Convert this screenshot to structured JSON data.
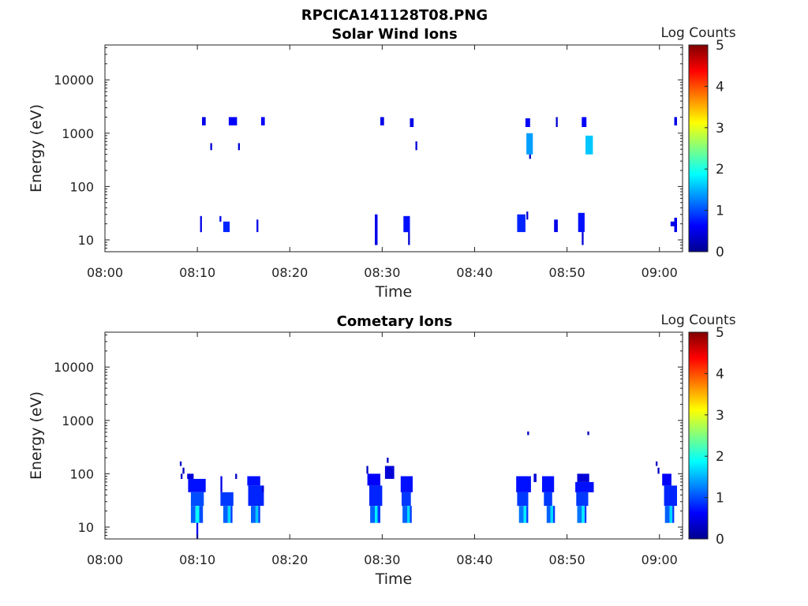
{
  "figure_title": "RPCICA141128T08.PNG",
  "colormap": [
    "#00008f",
    "#0000ff",
    "#0080ff",
    "#00ffff",
    "#80ff80",
    "#ffff00",
    "#ff8000",
    "#ff0000",
    "#800000"
  ],
  "chart_data": [
    {
      "type": "heatmap",
      "title": "Solar Wind Ions",
      "xlabel": "Time",
      "ylabel": "Energy (eV)",
      "colorbar_label": "Log Counts",
      "colorbar_ticks": [
        "0",
        "1",
        "2",
        "3",
        "4",
        "5"
      ],
      "clim": [
        0,
        5
      ],
      "x_ticks": [
        "08:00",
        "08:10",
        "08:20",
        "08:30",
        "08:40",
        "08:50",
        "09:00"
      ],
      "y_ticks": [
        "10",
        "100",
        "1000",
        "10000"
      ],
      "y_scale": "log",
      "ylim": [
        6,
        45000
      ],
      "xlim_minutes": [
        0,
        62.5
      ],
      "cells": [
        [
          10.5,
          10.9,
          1400,
          2000,
          0.5
        ],
        [
          11.4,
          11.6,
          480,
          650,
          0.4
        ],
        [
          13.4,
          14.3,
          1400,
          2000,
          0.6
        ],
        [
          14.4,
          14.6,
          480,
          650,
          0.4
        ],
        [
          16.9,
          17.3,
          1400,
          2000,
          0.6
        ],
        [
          29.8,
          30.2,
          1400,
          2000,
          0.5
        ],
        [
          33.0,
          33.4,
          1300,
          1900,
          0.5
        ],
        [
          33.6,
          33.8,
          480,
          700,
          0.4
        ],
        [
          45.5,
          46.0,
          1300,
          1900,
          0.6
        ],
        [
          45.6,
          46.3,
          400,
          1000,
          1.4
        ],
        [
          45.9,
          46.1,
          330,
          400,
          0.3
        ],
        [
          48.8,
          49.0,
          1300,
          2000,
          0.4
        ],
        [
          51.6,
          52.1,
          1300,
          2000,
          0.6
        ],
        [
          52.0,
          52.8,
          400,
          900,
          1.6
        ],
        [
          61.6,
          61.9,
          1400,
          2000,
          0.5
        ],
        [
          10.3,
          10.5,
          14,
          28,
          0.5
        ],
        [
          12.4,
          12.6,
          22,
          28,
          0.5
        ],
        [
          12.8,
          13.5,
          14,
          22,
          0.8
        ],
        [
          16.4,
          16.6,
          14,
          24,
          0.5
        ],
        [
          29.2,
          29.5,
          8,
          30,
          0.5
        ],
        [
          32.3,
          33.0,
          14,
          28,
          0.7
        ],
        [
          32.8,
          33.0,
          8,
          14,
          0.4
        ],
        [
          44.6,
          45.5,
          14,
          30,
          0.8
        ],
        [
          45.6,
          45.8,
          24,
          34,
          0.4
        ],
        [
          48.6,
          49.0,
          14,
          24,
          0.5
        ],
        [
          51.2,
          51.9,
          14,
          32,
          0.7
        ],
        [
          51.6,
          51.8,
          8,
          14,
          0.4
        ],
        [
          61.2,
          61.7,
          18,
          22,
          0.5
        ],
        [
          61.6,
          61.9,
          14,
          26,
          0.5
        ]
      ]
    },
    {
      "type": "heatmap",
      "title": "Cometary Ions",
      "xlabel": "Time",
      "ylabel": "Energy (eV)",
      "colorbar_label": "Log Counts",
      "colorbar_ticks": [
        "0",
        "1",
        "2",
        "3",
        "4",
        "5"
      ],
      "clim": [
        0,
        5
      ],
      "x_ticks": [
        "08:00",
        "08:10",
        "08:20",
        "08:30",
        "08:40",
        "08:50",
        "09:00"
      ],
      "y_ticks": [
        "10",
        "100",
        "1000",
        "10000"
      ],
      "y_scale": "log",
      "ylim": [
        6,
        45000
      ],
      "xlim_minutes": [
        0,
        62.5
      ],
      "cells": [
        [
          8.1,
          8.3,
          140,
          170,
          0.3
        ],
        [
          8.4,
          8.6,
          100,
          130,
          0.3
        ],
        [
          8.2,
          8.4,
          80,
          100,
          0.3
        ],
        [
          8.9,
          9.6,
          80,
          100,
          0.4
        ],
        [
          9.0,
          10.9,
          45,
          80,
          0.7
        ],
        [
          9.3,
          10.7,
          25,
          45,
          1.0
        ],
        [
          9.3,
          9.8,
          12,
          25,
          1.1
        ],
        [
          9.8,
          10.2,
          12,
          25,
          1.9
        ],
        [
          9.9,
          10.1,
          6,
          12,
          0.6
        ],
        [
          10.2,
          10.6,
          12,
          25,
          1.0
        ],
        [
          12.5,
          12.7,
          45,
          90,
          0.5
        ],
        [
          12.5,
          13.9,
          25,
          45,
          0.9
        ],
        [
          12.8,
          13.3,
          12,
          25,
          1.1
        ],
        [
          13.3,
          13.6,
          12,
          25,
          1.7
        ],
        [
          13.6,
          13.8,
          12,
          25,
          0.9
        ],
        [
          14.1,
          14.3,
          80,
          100,
          0.3
        ],
        [
          15.4,
          16.8,
          60,
          90,
          0.7
        ],
        [
          15.5,
          17.2,
          25,
          60,
          0.8
        ],
        [
          15.8,
          16.3,
          12,
          25,
          1.1
        ],
        [
          16.3,
          16.6,
          12,
          25,
          1.6
        ],
        [
          16.6,
          16.8,
          12,
          25,
          0.9
        ],
        [
          17.0,
          17.2,
          45,
          60,
          0.4
        ],
        [
          28.3,
          28.5,
          100,
          140,
          0.3
        ],
        [
          28.4,
          29.8,
          60,
          100,
          0.6
        ],
        [
          28.6,
          30.0,
          25,
          60,
          0.8
        ],
        [
          28.7,
          29.2,
          12,
          25,
          1.1
        ],
        [
          29.2,
          29.5,
          12,
          25,
          1.8
        ],
        [
          29.5,
          29.8,
          12,
          25,
          0.9
        ],
        [
          30.5,
          30.7,
          160,
          200,
          0.3
        ],
        [
          30.3,
          31.3,
          80,
          140,
          0.4
        ],
        [
          32.0,
          33.3,
          45,
          90,
          0.7
        ],
        [
          32.1,
          33.1,
          25,
          45,
          0.9
        ],
        [
          32.2,
          32.7,
          12,
          25,
          1.1
        ],
        [
          32.7,
          33.0,
          12,
          25,
          1.7
        ],
        [
          33.0,
          33.2,
          12,
          25,
          0.9
        ],
        [
          45.7,
          45.9,
          530,
          620,
          0.3
        ],
        [
          44.5,
          46.1,
          45,
          90,
          0.7
        ],
        [
          44.6,
          45.8,
          25,
          45,
          0.9
        ],
        [
          44.8,
          45.3,
          12,
          25,
          1.2
        ],
        [
          45.3,
          45.6,
          12,
          25,
          1.8
        ],
        [
          45.6,
          45.8,
          12,
          25,
          0.9
        ],
        [
          46.4,
          46.7,
          70,
          100,
          0.4
        ],
        [
          47.3,
          48.6,
          45,
          90,
          0.7
        ],
        [
          47.5,
          48.4,
          25,
          45,
          0.9
        ],
        [
          47.8,
          48.2,
          12,
          25,
          1.1
        ],
        [
          48.2,
          48.5,
          12,
          25,
          1.7
        ],
        [
          48.5,
          48.7,
          12,
          25,
          0.9
        ],
        [
          52.2,
          52.4,
          530,
          620,
          0.3
        ],
        [
          51.1,
          52.4,
          70,
          100,
          0.4
        ],
        [
          50.9,
          52.9,
          45,
          70,
          0.7
        ],
        [
          51.0,
          52.3,
          25,
          45,
          0.9
        ],
        [
          51.1,
          51.6,
          12,
          25,
          1.2
        ],
        [
          51.6,
          51.9,
          12,
          25,
          1.8
        ],
        [
          51.9,
          52.1,
          12,
          25,
          0.9
        ],
        [
          59.6,
          59.8,
          140,
          170,
          0.3
        ],
        [
          59.8,
          60.0,
          100,
          130,
          0.3
        ],
        [
          60.3,
          61.3,
          60,
          100,
          0.6
        ],
        [
          60.5,
          61.9,
          25,
          60,
          0.8
        ],
        [
          60.6,
          61.1,
          12,
          25,
          1.1
        ],
        [
          61.1,
          61.4,
          12,
          25,
          1.7
        ],
        [
          61.4,
          61.6,
          12,
          25,
          0.9
        ]
      ]
    }
  ]
}
